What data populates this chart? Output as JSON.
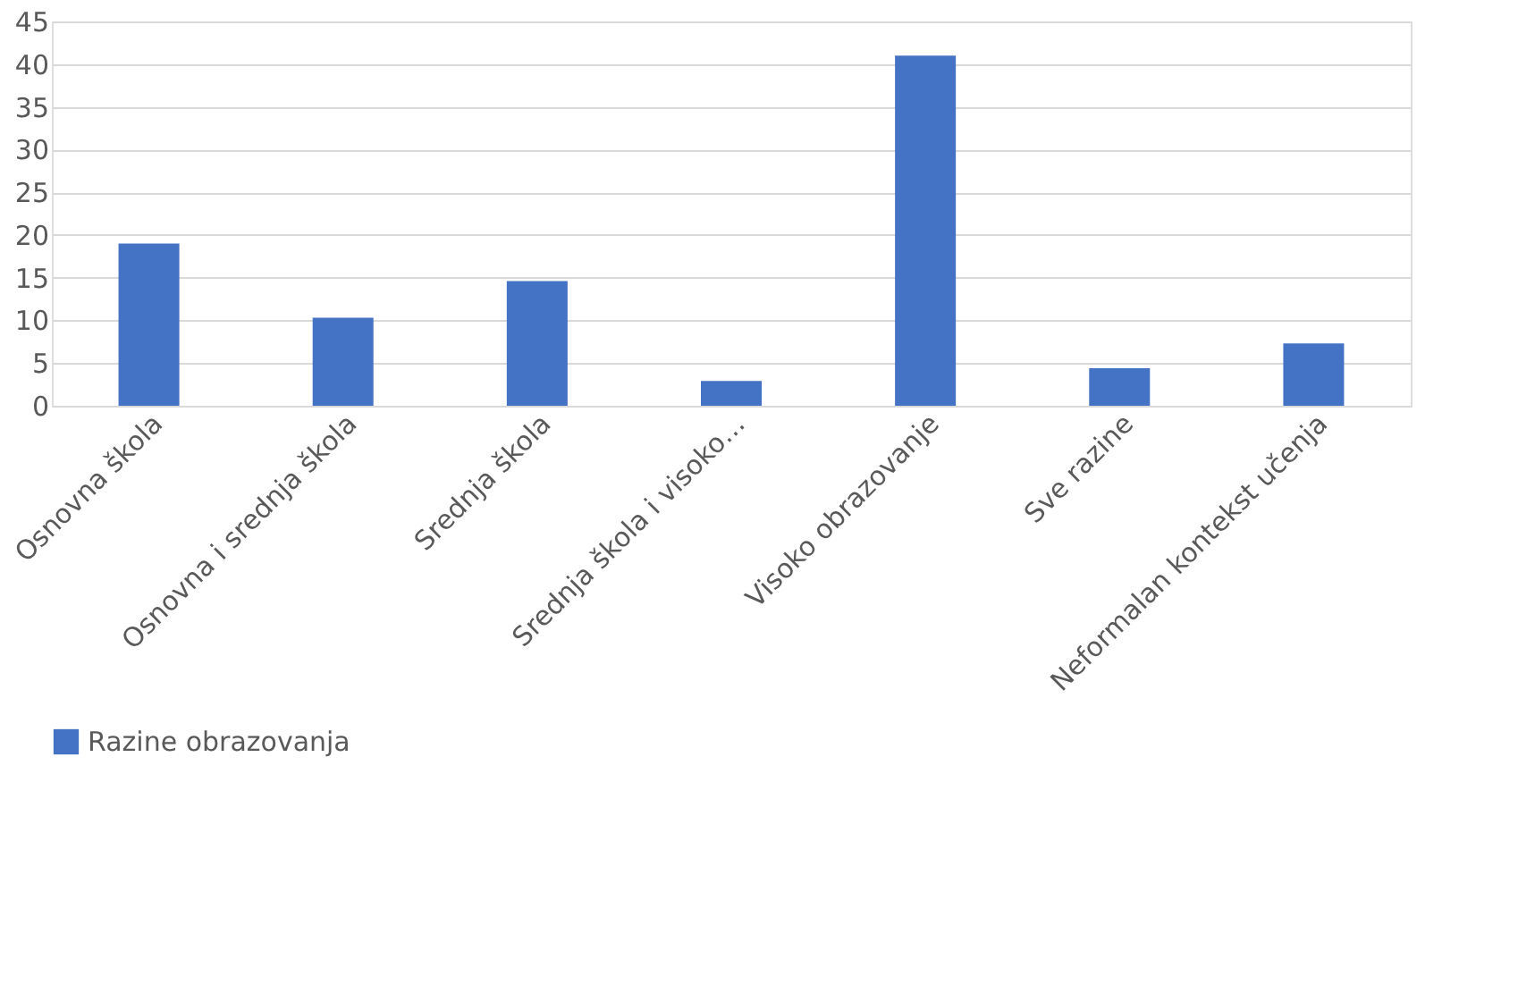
{
  "chart_data": {
    "type": "bar",
    "categories": [
      "Osnovna škola",
      "Osnovna i srednja škola",
      "Srednja škola",
      "Srednja škola i visoko…",
      "Visoko obrazovanje",
      "Sve razine",
      "Neformalan kontekst učenja"
    ],
    "series": [
      {
        "name": "Razine obrazovanja",
        "color": "#4472c4",
        "values": [
          19.0,
          10.3,
          14.6,
          2.9,
          41.0,
          4.4,
          7.3
        ]
      }
    ],
    "ylim": [
      0,
      45
    ],
    "yticks": [
      0,
      5,
      10,
      15,
      20,
      25,
      30,
      35,
      40,
      45
    ],
    "grid": "y",
    "legend": "bottom"
  }
}
